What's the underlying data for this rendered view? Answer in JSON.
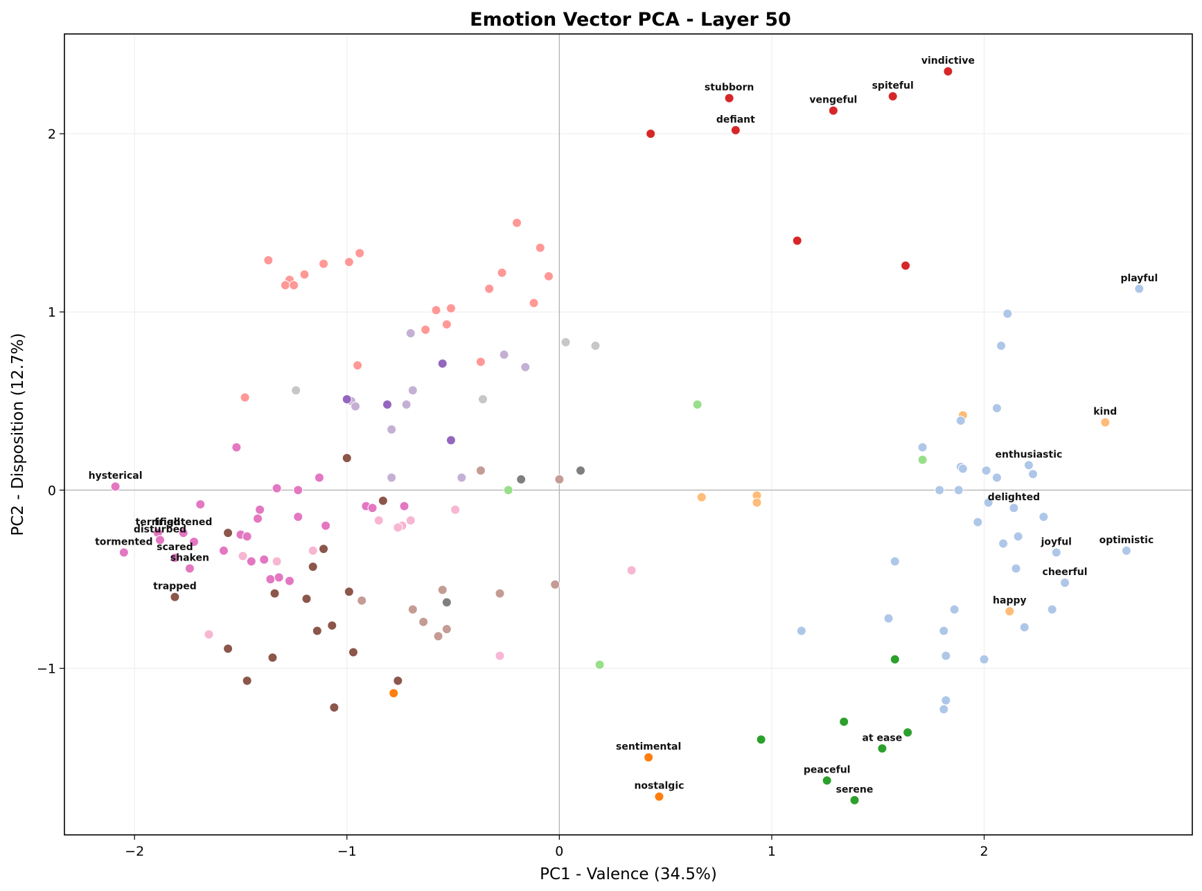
{
  "chart_data": {
    "type": "scatter",
    "title": "Emotion Vector PCA - Layer 50",
    "xlabel": "PC1 - Valence (34.5%)",
    "ylabel": "PC2 - Disposition (12.7%)",
    "xlim": [
      -2.33,
      2.98
    ],
    "ylim": [
      -1.935,
      2.56
    ],
    "xticks": [
      -2,
      -1,
      0,
      1,
      2
    ],
    "yticks": [
      -1,
      0,
      1,
      2
    ],
    "xtick_labels": [
      "−2",
      "−1",
      "0",
      "1",
      "2"
    ],
    "ytick_labels": [
      "−1",
      "0",
      "1",
      "2"
    ],
    "grid": true,
    "zero_lines": true,
    "colors": {
      "red": "#d62728",
      "salmon": "#ff9896",
      "lightpurple": "#c5b0d5",
      "purple": "#9467bd",
      "gray": "#7f7f7f",
      "lightgray": "#c7c7c7",
      "brown": "#8c564b",
      "tan": "#c49c94",
      "pink": "#e377c2",
      "lightpink": "#f7b6d2",
      "lightgreen": "#98df8a",
      "green": "#2ca02c",
      "orange": "#ff7f0e",
      "lightorange": "#ffbb78",
      "lightblue": "#aec7e8"
    },
    "points": [
      {
        "x": 1.83,
        "y": 2.35,
        "c": "red",
        "label": "vindictive"
      },
      {
        "x": 0.8,
        "y": 2.2,
        "c": "red",
        "label": "stubborn"
      },
      {
        "x": 1.57,
        "y": 2.21,
        "c": "red",
        "label": "spiteful"
      },
      {
        "x": 1.29,
        "y": 2.13,
        "c": "red",
        "label": "vengeful"
      },
      {
        "x": 0.83,
        "y": 2.02,
        "c": "red",
        "label": "defiant"
      },
      {
        "x": 0.43,
        "y": 2.0,
        "c": "red"
      },
      {
        "x": 1.12,
        "y": 1.4,
        "c": "red"
      },
      {
        "x": 1.63,
        "y": 1.26,
        "c": "red"
      },
      {
        "x": -0.2,
        "y": 1.5,
        "c": "salmon"
      },
      {
        "x": -0.09,
        "y": 1.36,
        "c": "salmon"
      },
      {
        "x": -0.94,
        "y": 1.33,
        "c": "salmon"
      },
      {
        "x": -1.37,
        "y": 1.29,
        "c": "salmon"
      },
      {
        "x": -0.99,
        "y": 1.28,
        "c": "salmon"
      },
      {
        "x": -1.11,
        "y": 1.27,
        "c": "salmon"
      },
      {
        "x": -0.27,
        "y": 1.22,
        "c": "salmon"
      },
      {
        "x": -1.2,
        "y": 1.21,
        "c": "salmon"
      },
      {
        "x": -0.05,
        "y": 1.2,
        "c": "salmon"
      },
      {
        "x": -1.27,
        "y": 1.18,
        "c": "salmon"
      },
      {
        "x": -1.29,
        "y": 1.15,
        "c": "salmon"
      },
      {
        "x": -1.25,
        "y": 1.15,
        "c": "salmon"
      },
      {
        "x": -0.33,
        "y": 1.13,
        "c": "salmon"
      },
      {
        "x": -0.12,
        "y": 1.05,
        "c": "salmon"
      },
      {
        "x": -0.51,
        "y": 1.02,
        "c": "salmon"
      },
      {
        "x": -0.58,
        "y": 1.01,
        "c": "salmon"
      },
      {
        "x": -0.53,
        "y": 0.93,
        "c": "salmon"
      },
      {
        "x": -0.63,
        "y": 0.9,
        "c": "salmon"
      },
      {
        "x": -0.37,
        "y": 0.72,
        "c": "salmon"
      },
      {
        "x": -0.95,
        "y": 0.7,
        "c": "salmon"
      },
      {
        "x": -1.48,
        "y": 0.52,
        "c": "salmon"
      },
      {
        "x": -0.7,
        "y": 0.88,
        "c": "lightpurple"
      },
      {
        "x": -0.26,
        "y": 0.76,
        "c": "lightpurple"
      },
      {
        "x": -0.16,
        "y": 0.69,
        "c": "lightpurple"
      },
      {
        "x": -0.69,
        "y": 0.56,
        "c": "lightpurple"
      },
      {
        "x": -0.98,
        "y": 0.5,
        "c": "lightpurple"
      },
      {
        "x": -0.96,
        "y": 0.47,
        "c": "lightpurple"
      },
      {
        "x": -0.72,
        "y": 0.48,
        "c": "lightpurple"
      },
      {
        "x": -0.79,
        "y": 0.34,
        "c": "lightpurple"
      },
      {
        "x": -0.79,
        "y": 0.07,
        "c": "lightpurple"
      },
      {
        "x": -0.46,
        "y": 0.07,
        "c": "lightpurple"
      },
      {
        "x": -0.55,
        "y": 0.71,
        "c": "purple"
      },
      {
        "x": -1.0,
        "y": 0.51,
        "c": "purple"
      },
      {
        "x": -0.81,
        "y": 0.48,
        "c": "purple"
      },
      {
        "x": -0.51,
        "y": 0.28,
        "c": "purple"
      },
      {
        "x": 0.03,
        "y": 0.83,
        "c": "lightgray"
      },
      {
        "x": 0.17,
        "y": 0.81,
        "c": "lightgray"
      },
      {
        "x": -1.24,
        "y": 0.56,
        "c": "lightgray"
      },
      {
        "x": -0.36,
        "y": 0.51,
        "c": "lightgray"
      },
      {
        "x": 0.1,
        "y": 0.11,
        "c": "gray"
      },
      {
        "x": -0.18,
        "y": 0.06,
        "c": "gray"
      },
      {
        "x": -0.53,
        "y": -0.63,
        "c": "gray"
      },
      {
        "x": -0.37,
        "y": 0.11,
        "c": "tan"
      },
      {
        "x": 0.0,
        "y": 0.06,
        "c": "tan"
      },
      {
        "x": -0.02,
        "y": -0.53,
        "c": "tan"
      },
      {
        "x": -0.28,
        "y": -0.58,
        "c": "tan"
      },
      {
        "x": -0.55,
        "y": -0.56,
        "c": "tan"
      },
      {
        "x": -0.93,
        "y": -0.62,
        "c": "tan"
      },
      {
        "x": -0.69,
        "y": -0.67,
        "c": "tan"
      },
      {
        "x": -0.64,
        "y": -0.74,
        "c": "tan"
      },
      {
        "x": -0.53,
        "y": -0.78,
        "c": "tan"
      },
      {
        "x": -0.57,
        "y": -0.82,
        "c": "tan"
      },
      {
        "x": -1.0,
        "y": 0.18,
        "c": "brown"
      },
      {
        "x": -0.83,
        "y": -0.06,
        "c": "brown"
      },
      {
        "x": -1.56,
        "y": -0.24,
        "c": "brown"
      },
      {
        "x": -1.11,
        "y": -0.33,
        "c": "brown"
      },
      {
        "x": -1.16,
        "y": -0.43,
        "c": "brown"
      },
      {
        "x": -0.99,
        "y": -0.57,
        "c": "brown"
      },
      {
        "x": -1.34,
        "y": -0.58,
        "c": "brown"
      },
      {
        "x": -1.19,
        "y": -0.61,
        "c": "brown"
      },
      {
        "x": -1.81,
        "y": -0.6,
        "c": "brown",
        "label": "trapped"
      },
      {
        "x": -1.07,
        "y": -0.76,
        "c": "brown"
      },
      {
        "x": -1.14,
        "y": -0.79,
        "c": "brown"
      },
      {
        "x": -1.56,
        "y": -0.89,
        "c": "brown"
      },
      {
        "x": -0.97,
        "y": -0.91,
        "c": "brown"
      },
      {
        "x": -1.35,
        "y": -0.94,
        "c": "brown"
      },
      {
        "x": -0.76,
        "y": -1.07,
        "c": "brown"
      },
      {
        "x": -1.47,
        "y": -1.07,
        "c": "brown"
      },
      {
        "x": -1.06,
        "y": -1.22,
        "c": "brown"
      },
      {
        "x": -2.09,
        "y": 0.02,
        "c": "pink",
        "label": "hysterical"
      },
      {
        "x": -1.52,
        "y": 0.24,
        "c": "pink"
      },
      {
        "x": -1.13,
        "y": 0.07,
        "c": "pink"
      },
      {
        "x": -1.33,
        "y": 0.01,
        "c": "pink"
      },
      {
        "x": -1.23,
        "y": 0.0,
        "c": "pink"
      },
      {
        "x": -1.69,
        "y": -0.08,
        "c": "pink"
      },
      {
        "x": -0.91,
        "y": -0.09,
        "c": "pink"
      },
      {
        "x": -0.88,
        "y": -0.1,
        "c": "pink"
      },
      {
        "x": -0.73,
        "y": -0.09,
        "c": "pink"
      },
      {
        "x": -1.41,
        "y": -0.11,
        "c": "pink"
      },
      {
        "x": -1.23,
        "y": -0.15,
        "c": "pink"
      },
      {
        "x": -1.42,
        "y": -0.16,
        "c": "pink"
      },
      {
        "x": -1.1,
        "y": -0.2,
        "c": "pink"
      },
      {
        "x": -1.77,
        "y": -0.24,
        "c": "pink",
        "label": "frightened"
      },
      {
        "x": -1.89,
        "y": -0.24,
        "c": "pink",
        "label": "terrified"
      },
      {
        "x": -1.88,
        "y": -0.28,
        "c": "pink",
        "label": "disturbed"
      },
      {
        "x": -1.5,
        "y": -0.25,
        "c": "pink"
      },
      {
        "x": -1.47,
        "y": -0.26,
        "c": "pink"
      },
      {
        "x": -1.72,
        "y": -0.29,
        "c": "pink"
      },
      {
        "x": -1.58,
        "y": -0.34,
        "c": "pink"
      },
      {
        "x": -2.05,
        "y": -0.35,
        "c": "pink",
        "label": "tormented"
      },
      {
        "x": -1.81,
        "y": -0.38,
        "c": "pink",
        "label": "scared"
      },
      {
        "x": -1.39,
        "y": -0.39,
        "c": "pink"
      },
      {
        "x": -1.45,
        "y": -0.4,
        "c": "pink"
      },
      {
        "x": -1.74,
        "y": -0.44,
        "c": "pink",
        "label": "shaken"
      },
      {
        "x": -1.36,
        "y": -0.5,
        "c": "pink"
      },
      {
        "x": -1.32,
        "y": -0.49,
        "c": "pink"
      },
      {
        "x": -1.27,
        "y": -0.51,
        "c": "pink"
      },
      {
        "x": -0.49,
        "y": -0.11,
        "c": "lightpink"
      },
      {
        "x": -0.85,
        "y": -0.17,
        "c": "lightpink"
      },
      {
        "x": -0.7,
        "y": -0.17,
        "c": "lightpink"
      },
      {
        "x": -0.74,
        "y": -0.2,
        "c": "lightpink"
      },
      {
        "x": -0.76,
        "y": -0.21,
        "c": "lightpink"
      },
      {
        "x": -1.16,
        "y": -0.34,
        "c": "lightpink"
      },
      {
        "x": -1.49,
        "y": -0.37,
        "c": "lightpink"
      },
      {
        "x": -1.33,
        "y": -0.4,
        "c": "lightpink"
      },
      {
        "x": 0.34,
        "y": -0.45,
        "c": "lightpink"
      },
      {
        "x": -1.65,
        "y": -0.81,
        "c": "lightpink"
      },
      {
        "x": -0.28,
        "y": -0.93,
        "c": "lightpink"
      },
      {
        "x": 0.65,
        "y": 0.48,
        "c": "lightgreen"
      },
      {
        "x": 1.71,
        "y": 0.17,
        "c": "lightgreen"
      },
      {
        "x": -0.24,
        "y": 0.0,
        "c": "lightgreen"
      },
      {
        "x": 0.19,
        "y": -0.98,
        "c": "lightgreen"
      },
      {
        "x": 1.58,
        "y": -0.95,
        "c": "green"
      },
      {
        "x": 1.34,
        "y": -1.3,
        "c": "green"
      },
      {
        "x": 1.64,
        "y": -1.36,
        "c": "green"
      },
      {
        "x": 0.95,
        "y": -1.4,
        "c": "green"
      },
      {
        "x": 1.52,
        "y": -1.45,
        "c": "green",
        "label": "at ease"
      },
      {
        "x": 1.26,
        "y": -1.63,
        "c": "green",
        "label": "peaceful"
      },
      {
        "x": 1.39,
        "y": -1.74,
        "c": "green",
        "label": "serene"
      },
      {
        "x": -0.78,
        "y": -1.14,
        "c": "orange"
      },
      {
        "x": 0.42,
        "y": -1.5,
        "c": "orange",
        "label": "sentimental"
      },
      {
        "x": 0.47,
        "y": -1.72,
        "c": "orange",
        "label": "nostalgic"
      },
      {
        "x": 1.9,
        "y": 0.42,
        "c": "lightorange"
      },
      {
        "x": 2.57,
        "y": 0.38,
        "c": "lightorange",
        "label": "kind"
      },
      {
        "x": 0.67,
        "y": -0.04,
        "c": "lightorange"
      },
      {
        "x": 0.93,
        "y": -0.03,
        "c": "lightorange"
      },
      {
        "x": 0.93,
        "y": -0.07,
        "c": "lightorange"
      },
      {
        "x": 2.12,
        "y": -0.68,
        "c": "lightorange",
        "label": "happy"
      },
      {
        "x": 2.73,
        "y": 1.13,
        "c": "lightblue",
        "label": "playful"
      },
      {
        "x": 2.11,
        "y": 0.99,
        "c": "lightblue"
      },
      {
        "x": 2.08,
        "y": 0.81,
        "c": "lightblue"
      },
      {
        "x": 2.06,
        "y": 0.46,
        "c": "lightblue"
      },
      {
        "x": 1.89,
        "y": 0.39,
        "c": "lightblue"
      },
      {
        "x": 1.71,
        "y": 0.24,
        "c": "lightblue"
      },
      {
        "x": 2.21,
        "y": 0.14,
        "c": "lightblue",
        "label": "enthusiastic"
      },
      {
        "x": 1.89,
        "y": 0.13,
        "c": "lightblue"
      },
      {
        "x": 1.9,
        "y": 0.12,
        "c": "lightblue"
      },
      {
        "x": 2.01,
        "y": 0.11,
        "c": "lightblue"
      },
      {
        "x": 2.23,
        "y": 0.09,
        "c": "lightblue"
      },
      {
        "x": 2.06,
        "y": 0.07,
        "c": "lightblue"
      },
      {
        "x": 1.79,
        "y": 0.0,
        "c": "lightblue"
      },
      {
        "x": 1.88,
        "y": 0.0,
        "c": "lightblue"
      },
      {
        "x": 2.02,
        "y": -0.07,
        "c": "lightblue"
      },
      {
        "x": 2.14,
        "y": -0.1,
        "c": "lightblue",
        "label": "delighted"
      },
      {
        "x": 2.28,
        "y": -0.15,
        "c": "lightblue"
      },
      {
        "x": 1.97,
        "y": -0.18,
        "c": "lightblue"
      },
      {
        "x": 2.16,
        "y": -0.26,
        "c": "lightblue"
      },
      {
        "x": 2.09,
        "y": -0.3,
        "c": "lightblue"
      },
      {
        "x": 2.34,
        "y": -0.35,
        "c": "lightblue",
        "label": "joyful"
      },
      {
        "x": 2.67,
        "y": -0.34,
        "c": "lightblue",
        "label": "optimistic"
      },
      {
        "x": 1.58,
        "y": -0.4,
        "c": "lightblue"
      },
      {
        "x": 2.15,
        "y": -0.44,
        "c": "lightblue"
      },
      {
        "x": 2.38,
        "y": -0.52,
        "c": "lightblue",
        "label": "cheerful"
      },
      {
        "x": 2.32,
        "y": -0.67,
        "c": "lightblue"
      },
      {
        "x": 1.86,
        "y": -0.67,
        "c": "lightblue"
      },
      {
        "x": 1.55,
        "y": -0.72,
        "c": "lightblue"
      },
      {
        "x": 2.19,
        "y": -0.77,
        "c": "lightblue"
      },
      {
        "x": 1.81,
        "y": -0.79,
        "c": "lightblue"
      },
      {
        "x": 1.14,
        "y": -0.79,
        "c": "lightblue"
      },
      {
        "x": 1.82,
        "y": -0.93,
        "c": "lightblue"
      },
      {
        "x": 2.0,
        "y": -0.95,
        "c": "lightblue"
      },
      {
        "x": 1.82,
        "y": -1.18,
        "c": "lightblue"
      },
      {
        "x": 1.81,
        "y": -1.23,
        "c": "lightblue"
      }
    ]
  }
}
